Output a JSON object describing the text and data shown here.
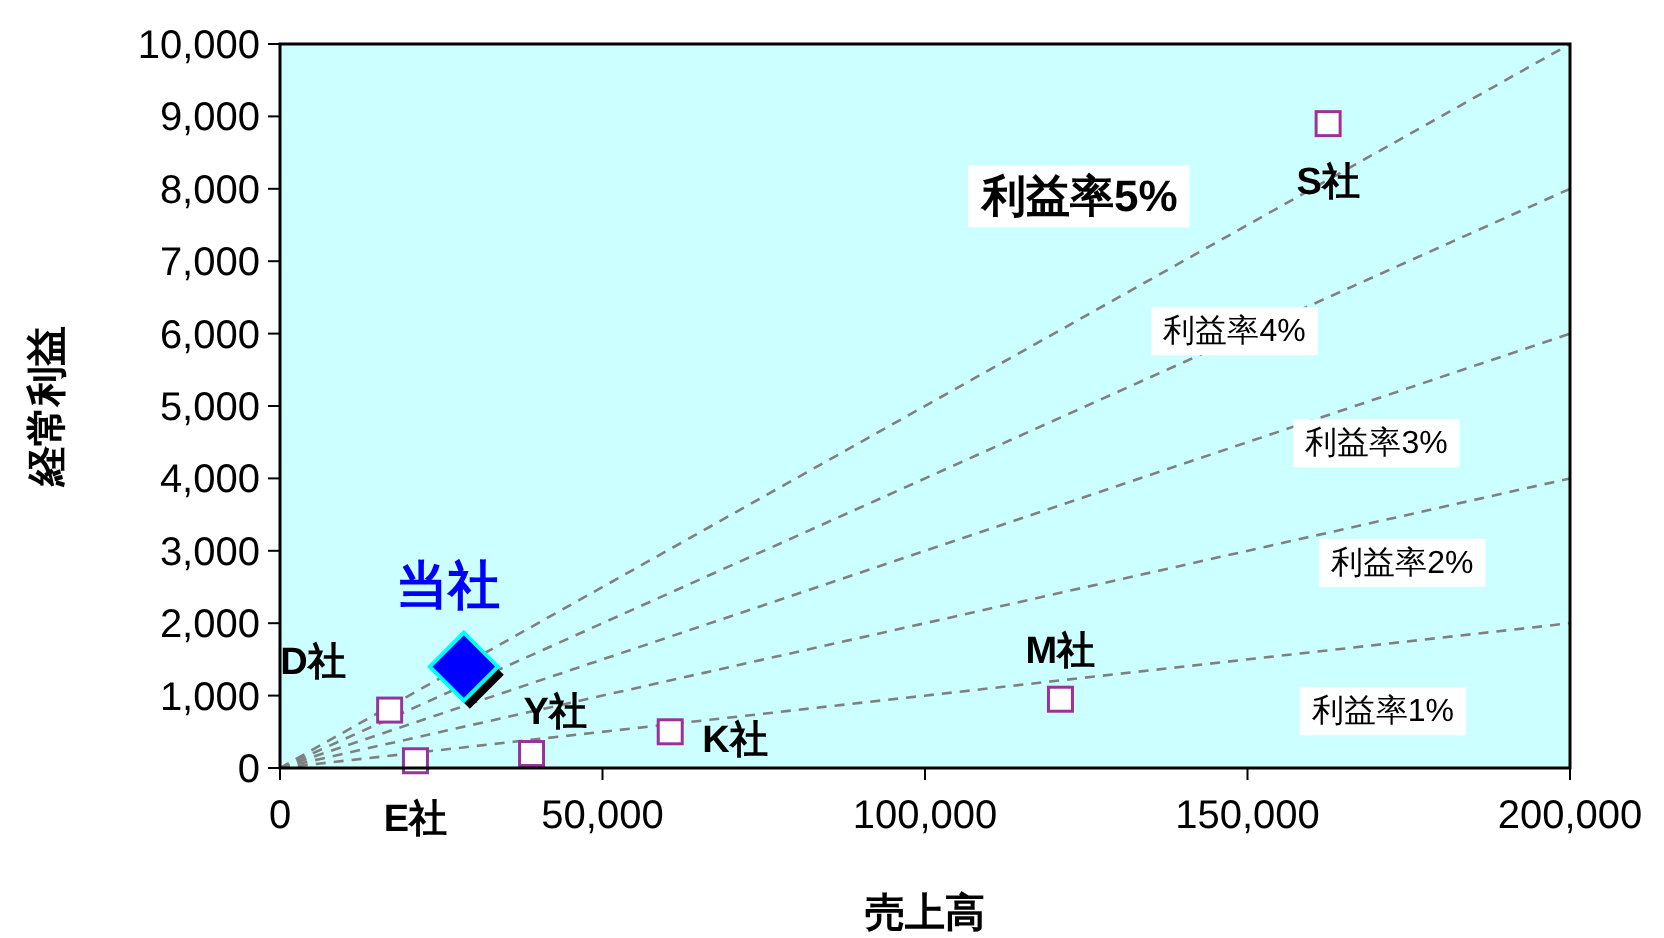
{
  "chart_data": {
    "type": "scatter",
    "xlabel": "売上高",
    "ylabel": "経常利益",
    "xlim": [
      0,
      200000
    ],
    "xticks": [
      {
        "value": 0,
        "label": "0"
      },
      {
        "value": 50000,
        "label": "50,000"
      },
      {
        "value": 100000,
        "label": "100,000"
      },
      {
        "value": 150000,
        "label": "150,000"
      },
      {
        "value": 200000,
        "label": "200,000"
      }
    ],
    "ylim": [
      0,
      10000
    ],
    "yticks": [
      {
        "value": 0,
        "label": "0"
      },
      {
        "value": 1000,
        "label": "1,000"
      },
      {
        "value": 2000,
        "label": "2,000"
      },
      {
        "value": 3000,
        "label": "3,000"
      },
      {
        "value": 4000,
        "label": "4,000"
      },
      {
        "value": 5000,
        "label": "5,000"
      },
      {
        "value": 6000,
        "label": "6,000"
      },
      {
        "value": 7000,
        "label": "7,000"
      },
      {
        "value": 8000,
        "label": "8,000"
      },
      {
        "value": 9000,
        "label": "9,000"
      },
      {
        "value": 10000,
        "label": "10,000"
      }
    ],
    "grid": false,
    "series": [
      {
        "name": "利益率5%",
        "type": "line",
        "line_style": "dashed",
        "color": "#808080",
        "x": [
          0,
          200000
        ],
        "values": [
          0,
          10000
        ]
      },
      {
        "name": "利益率4%",
        "type": "line",
        "line_style": "dashed",
        "color": "#808080",
        "x": [
          0,
          200000
        ],
        "values": [
          0,
          8000
        ]
      },
      {
        "name": "利益率3%",
        "type": "line",
        "line_style": "dashed",
        "color": "#808080",
        "x": [
          0,
          200000
        ],
        "values": [
          0,
          6000
        ]
      },
      {
        "name": "利益率2%",
        "type": "line",
        "line_style": "dashed",
        "color": "#808080",
        "x": [
          0,
          200000
        ],
        "values": [
          0,
          4000
        ]
      },
      {
        "name": "利益率1%",
        "type": "line",
        "line_style": "dashed",
        "color": "#808080",
        "x": [
          0,
          200000
        ],
        "values": [
          0,
          2000
        ]
      },
      {
        "name": "S社",
        "marker": "square",
        "color": "#993399",
        "x": [
          162500
        ],
        "values": [
          8900
        ]
      },
      {
        "name": "D社",
        "marker": "square",
        "color": "#993399",
        "x": [
          17000
        ],
        "values": [
          800
        ]
      },
      {
        "name": "E社",
        "marker": "square",
        "color": "#993399",
        "x": [
          21000
        ],
        "values": [
          100
        ]
      },
      {
        "name": "Y社",
        "marker": "square",
        "color": "#993399",
        "x": [
          39000
        ],
        "values": [
          200
        ]
      },
      {
        "name": "K社",
        "marker": "square",
        "color": "#993399",
        "x": [
          60500
        ],
        "values": [
          500
        ]
      },
      {
        "name": "M社",
        "marker": "square",
        "color": "#993399",
        "x": [
          121000
        ],
        "values": [
          950
        ]
      },
      {
        "name": "当社",
        "marker": "diamond",
        "color": "#0000ff",
        "x": [
          28500
        ],
        "values": [
          1400
        ]
      }
    ]
  }
}
